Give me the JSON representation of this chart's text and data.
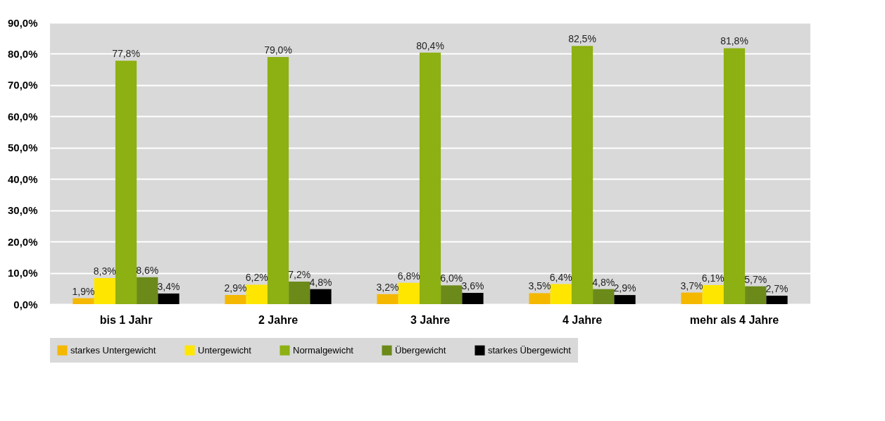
{
  "chart_data": {
    "type": "bar",
    "categories": [
      "bis 1 Jahr",
      "2 Jahre",
      "3 Jahre",
      "4 Jahre",
      "mehr als 4 Jahre"
    ],
    "series": [
      {
        "name": "starkes Untergewicht",
        "color": "#f5b800",
        "values": [
          1.9,
          2.9,
          3.2,
          3.5,
          3.7
        ],
        "value_labels": [
          "1,9%",
          "2,9%",
          "3,2%",
          "3,5%",
          "3,7%"
        ]
      },
      {
        "name": "Untergewicht",
        "color": "#ffe600",
        "values": [
          8.3,
          6.2,
          6.8,
          6.4,
          6.1
        ],
        "value_labels": [
          "8,3%",
          "6,2%",
          "6,8%",
          "6,4%",
          "6,1%"
        ]
      },
      {
        "name": "Normalgewicht",
        "color": "#8db012",
        "values": [
          77.8,
          79.0,
          80.4,
          82.5,
          81.8
        ],
        "value_labels": [
          "77,8%",
          "79,0%",
          "80,4%",
          "82,5%",
          "81,8%"
        ]
      },
      {
        "name": "Übergewicht",
        "color": "#6b8a1a",
        "values": [
          8.6,
          7.2,
          6.0,
          4.8,
          5.7
        ],
        "value_labels": [
          "8,6%",
          "7,2%",
          "6,0%",
          "4,8%",
          "5,7%"
        ]
      },
      {
        "name": "starkes Übergewicht",
        "color": "#000000",
        "values": [
          3.4,
          4.8,
          3.6,
          2.9,
          2.7
        ],
        "value_labels": [
          "3,4%",
          "4,8%",
          "3,6%",
          "2,9%",
          "2,7%"
        ]
      }
    ],
    "ylim": [
      0,
      90
    ],
    "yticks": [
      {
        "value": 0,
        "label": "0,0%"
      },
      {
        "value": 10,
        "label": "10,0%"
      },
      {
        "value": 20,
        "label": "20,0%"
      },
      {
        "value": 30,
        "label": "30,0%"
      },
      {
        "value": 40,
        "label": "40,0%"
      },
      {
        "value": 50,
        "label": "50,0%"
      },
      {
        "value": 60,
        "label": "60,0%"
      },
      {
        "value": 70,
        "label": "70,0%"
      },
      {
        "value": 80,
        "label": "80,0%"
      },
      {
        "value": 90,
        "label": "90,0%"
      }
    ],
    "grid": "y",
    "legend": "bottom"
  }
}
